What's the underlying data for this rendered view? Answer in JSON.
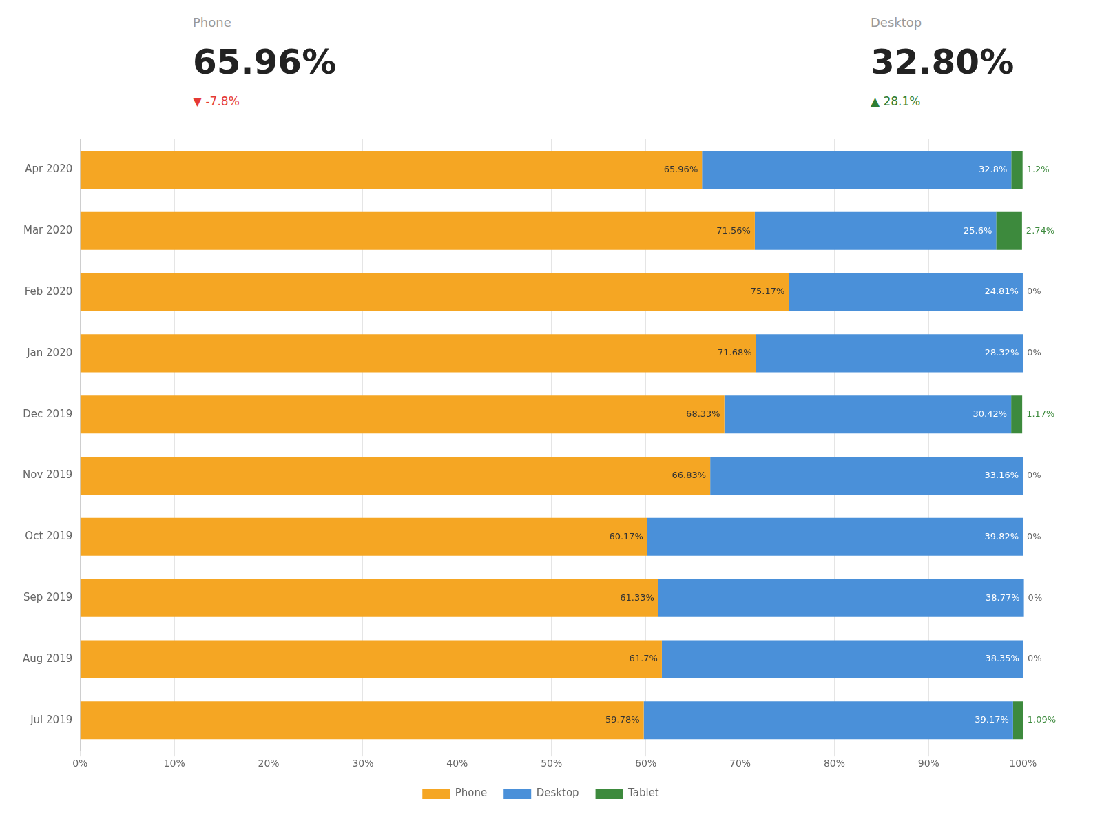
{
  "chart_data": {
    "type": "bar",
    "orientation": "horizontal",
    "stacked": true,
    "data_labels": true,
    "grid": true,
    "legend": "bottom",
    "annotations": [
      [
        {
          "text": "Phone"
        },
        {
          "text": "65.96%"
        },
        {
          "text": "▼ -7.8%",
          "color": "#e53935"
        }
      ],
      [
        {
          "text": "Desktop"
        },
        {
          "text": "32.80%"
        },
        {
          "text": "▲ 28.1%",
          "color": "#2e7d32"
        }
      ]
    ],
    "categories": [
      "Apr 2020",
      "Mar 2020",
      "Feb 2020",
      "Jan 2020",
      "Dec 2019",
      "Nov 2019",
      "Oct 2019",
      "Sep 2019",
      "Aug 2019",
      "Jul 2019"
    ],
    "series": [
      {
        "name": "Phone",
        "color": "#f5a623",
        "values": [
          65.96,
          71.56,
          75.17,
          71.68,
          68.33,
          66.83,
          60.17,
          61.33,
          61.7,
          59.78
        ],
        "value_labels": [
          "65.96%",
          "71.56%",
          "75.17%",
          "71.68%",
          "68.33%",
          "66.83%",
          "60.17%",
          "61.33%",
          "61.7%",
          "59.78%"
        ]
      },
      {
        "name": "Desktop",
        "color": "#4a90d9",
        "values": [
          32.8,
          25.6,
          24.81,
          28.32,
          30.42,
          33.16,
          39.82,
          38.77,
          38.35,
          39.17
        ],
        "value_labels": [
          "32.8%",
          "25.6%",
          "24.81%",
          "28.32%",
          "30.42%",
          "33.16%",
          "39.82%",
          "38.77%",
          "38.35%",
          "39.17%"
        ]
      },
      {
        "name": "Tablet",
        "color": "#3d8a3d",
        "values": [
          1.2,
          2.74,
          0.0,
          0.0,
          1.17,
          0.0,
          0.0,
          0.0,
          0.0,
          1.09
        ],
        "value_labels": [
          "1.2%",
          "2.74%",
          "0%",
          "0%",
          "1.17%",
          "0%",
          "0%",
          "0%",
          "0%",
          "1.09%"
        ]
      }
    ],
    "xlim": [
      0,
      104
    ],
    "xticks": [
      {
        "value": 0,
        "label": "0%"
      },
      {
        "value": 10,
        "label": "10%"
      },
      {
        "value": 20,
        "label": "20%"
      },
      {
        "value": 30,
        "label": "30%"
      },
      {
        "value": 40,
        "label": "40%"
      },
      {
        "value": 50,
        "label": "50%"
      },
      {
        "value": 60,
        "label": "60%"
      },
      {
        "value": 70,
        "label": "70%"
      },
      {
        "value": 80,
        "label": "80%"
      },
      {
        "value": 90,
        "label": "90%"
      },
      {
        "value": 100,
        "label": "100%"
      }
    ]
  }
}
